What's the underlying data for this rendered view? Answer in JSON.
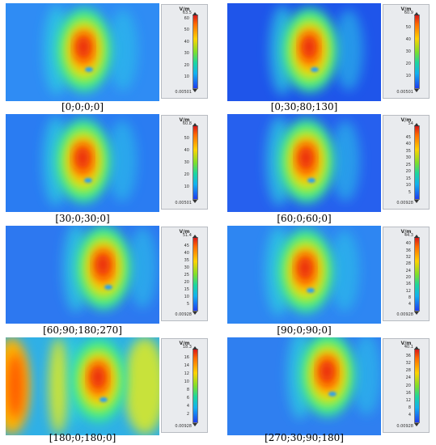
{
  "legend_unit": "V/m",
  "panels": [
    {
      "caption": "[0;0;0;0]",
      "max_label": "63.5",
      "min_label": "0.00501",
      "ticks": [
        "60",
        "50",
        "40",
        "30",
        "20",
        "10"
      ],
      "tick_vals": [
        60,
        50,
        40,
        30,
        20,
        10
      ],
      "max_val": 63.5
    },
    {
      "caption": "[0;30;80;130]",
      "max_label": "60.9",
      "min_label": "0.00501",
      "ticks": [
        "50",
        "40",
        "30",
        "20",
        "10"
      ],
      "tick_vals": [
        50,
        40,
        30,
        20,
        10
      ],
      "max_val": 60.9
    },
    {
      "caption": "[30;0;30;0]",
      "max_label": "60.8",
      "min_label": "0.00501",
      "ticks": [
        "50",
        "40",
        "30",
        "20",
        "10"
      ],
      "tick_vals": [
        50,
        40,
        30,
        20,
        10
      ],
      "max_val": 60.8
    },
    {
      "caption": "[60;0;60;0]",
      "max_label": "54",
      "min_label": "0.00928",
      "ticks": [
        "45",
        "40",
        "35",
        "30",
        "25",
        "20",
        "15",
        "10",
        "5"
      ],
      "tick_vals": [
        45,
        40,
        35,
        30,
        25,
        20,
        15,
        10,
        5
      ],
      "max_val": 54
    },
    {
      "caption": "[60;90;180;270]",
      "max_label": "51.4",
      "min_label": "0.00928",
      "ticks": [
        "45",
        "40",
        "35",
        "30",
        "25",
        "20",
        "15",
        "10",
        "5"
      ],
      "tick_vals": [
        45,
        40,
        35,
        30,
        25,
        20,
        15,
        10,
        5
      ],
      "max_val": 51.4
    },
    {
      "caption": "[90;0;90;0]",
      "max_label": "44.3",
      "min_label": "0.00928",
      "ticks": [
        "40",
        "36",
        "32",
        "28",
        "24",
        "20",
        "16",
        "12",
        "8",
        "4"
      ],
      "tick_vals": [
        40,
        36,
        32,
        28,
        24,
        20,
        16,
        12,
        8,
        4
      ],
      "max_val": 44.3
    },
    {
      "caption": "[180;0;180;0]",
      "max_label": "18.3",
      "min_label": "0.00928",
      "ticks": [
        "16",
        "14",
        "12",
        "10",
        "8",
        "6",
        "4",
        "2"
      ],
      "tick_vals": [
        16,
        14,
        12,
        10,
        8,
        6,
        4,
        2
      ],
      "max_val": 18.3
    },
    {
      "caption": "[270;30;90;180]",
      "max_label": "40.1",
      "min_label": "0.00928",
      "ticks": [
        "36",
        "32",
        "28",
        "24",
        "20",
        "16",
        "12",
        "8",
        "4"
      ],
      "tick_vals": [
        36,
        32,
        28,
        24,
        20,
        16,
        12,
        8,
        4
      ],
      "max_val": 40.1
    }
  ]
}
